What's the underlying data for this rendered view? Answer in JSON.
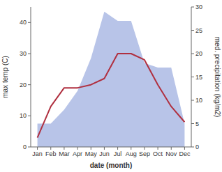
{
  "chart_data": {
    "type": "line",
    "xlabel": "date (month)",
    "ylabel": "max temp (C)",
    "y2label": "med. precipitation (kg/m2)",
    "categories": [
      "Jan",
      "Feb",
      "Mar",
      "Apr",
      "May",
      "Jun",
      "Jul",
      "Aug",
      "Sep",
      "Oct",
      "Nov",
      "Dec"
    ],
    "series": [
      {
        "type": "area",
        "axis": "y2",
        "color": "#b8c4e8",
        "values": [
          5,
          5,
          8,
          12,
          19,
          29,
          27,
          27,
          18,
          17,
          17,
          5
        ]
      },
      {
        "type": "line",
        "color": "#b03040",
        "values": [
          3,
          13,
          19,
          19,
          20,
          22,
          30,
          30,
          28,
          20,
          13,
          8
        ]
      }
    ],
    "ylim": [
      0,
      45
    ],
    "yticks": [
      0,
      10,
      20,
      30,
      40
    ],
    "y2lim": [
      0,
      30
    ],
    "y2ticks": [
      0,
      5,
      10,
      15,
      20,
      25,
      30
    ],
    "grid": false
  }
}
